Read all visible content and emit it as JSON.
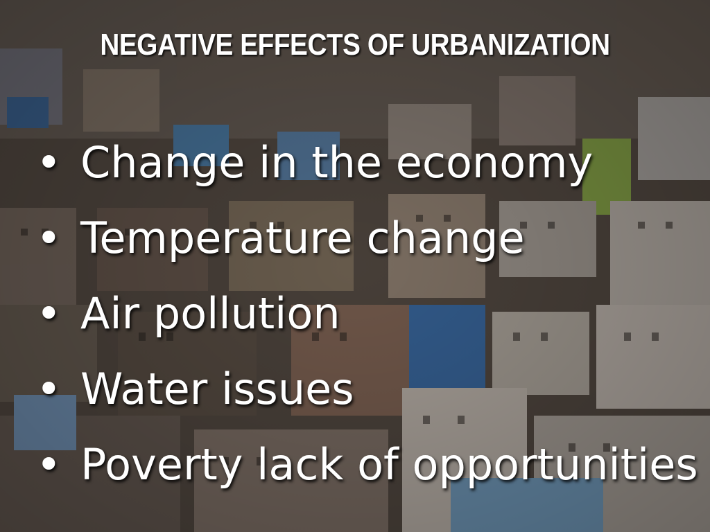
{
  "slide": {
    "title": "NEGATIVE EFFECTS OF URBANIZATION",
    "bullet_glyph": "•",
    "bullets": [
      "Change in the economy",
      "Temperature change",
      "Air pollution",
      "Water issues",
      "Poverty lack of opportunities"
    ]
  },
  "colors": {
    "text": "#ffffff",
    "background": "#5a5048"
  }
}
